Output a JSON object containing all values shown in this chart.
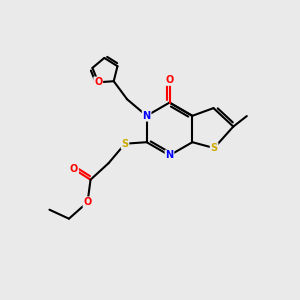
{
  "background_color": "#eaeaea",
  "figsize": [
    3.0,
    3.0
  ],
  "dpi": 100,
  "colors": {
    "bond": "#000000",
    "N": "#0000ff",
    "O": "#ff0000",
    "S_thio": "#ccaa00",
    "S_ether": "#ccaa00",
    "C": "#000000",
    "furan_O": "#ff0000"
  },
  "lw": 1.5
}
